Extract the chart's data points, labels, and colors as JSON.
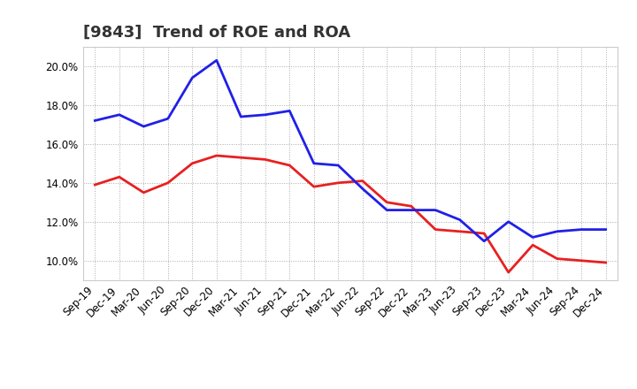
{
  "title": "[9843]  Trend of ROE and ROA",
  "x_labels": [
    "Sep-19",
    "Dec-19",
    "Mar-20",
    "Jun-20",
    "Sep-20",
    "Dec-20",
    "Mar-21",
    "Jun-21",
    "Sep-21",
    "Dec-21",
    "Mar-22",
    "Jun-22",
    "Sep-22",
    "Dec-22",
    "Mar-23",
    "Jun-23",
    "Sep-23",
    "Dec-23",
    "Mar-24",
    "Jun-24",
    "Sep-24",
    "Dec-24"
  ],
  "roe": [
    13.9,
    14.3,
    13.5,
    14.0,
    15.0,
    15.4,
    15.3,
    15.2,
    14.9,
    13.8,
    14.0,
    14.1,
    13.0,
    12.8,
    11.6,
    11.5,
    11.4,
    9.4,
    10.8,
    10.1,
    10.0,
    9.9
  ],
  "roa": [
    17.2,
    17.5,
    16.9,
    17.3,
    19.4,
    20.3,
    17.4,
    17.5,
    17.7,
    15.0,
    14.9,
    13.7,
    12.6,
    12.6,
    12.6,
    12.1,
    11.0,
    12.0,
    11.2,
    11.5,
    11.6,
    11.6
  ],
  "roe_color": "#e82020",
  "roa_color": "#2020e8",
  "background_color": "#ffffff",
  "plot_bg_color": "#ffffff",
  "grid_color": "#aaaaaa",
  "ylim": [
    9.0,
    21.0
  ],
  "yticks": [
    10.0,
    12.0,
    14.0,
    16.0,
    18.0,
    20.0
  ],
  "line_width": 2.0,
  "title_fontsize": 13,
  "tick_fontsize": 8.5,
  "legend_fontsize": 10
}
